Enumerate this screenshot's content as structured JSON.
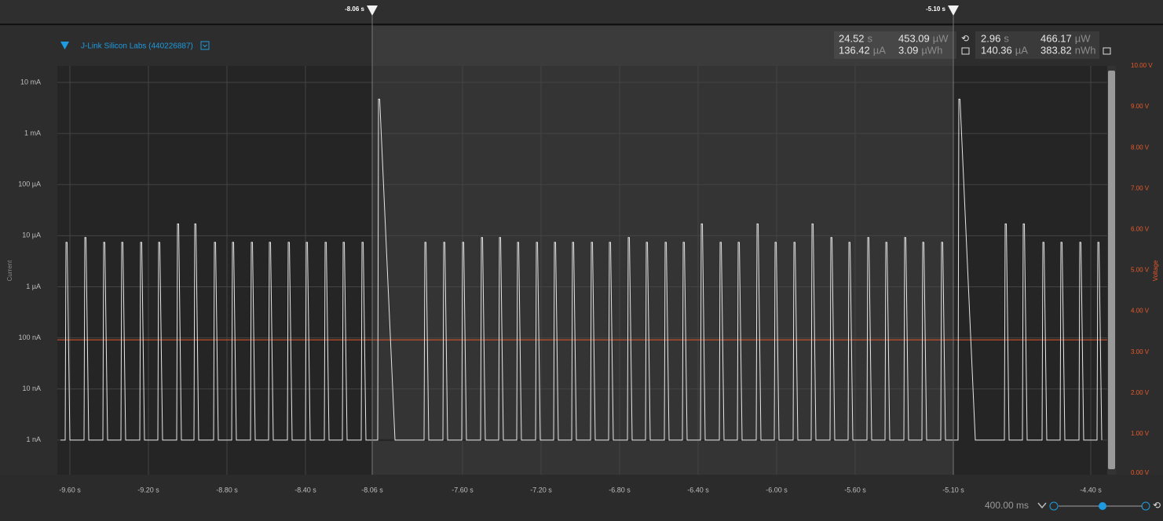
{
  "header": {
    "device": "J-Link Silicon Labs (440226887)"
  },
  "window_stats": [
    {
      "value": "24.52",
      "unit": "s"
    },
    {
      "value": "453.09",
      "unit": "µW"
    },
    {
      "value": "136.42",
      "unit": "µA"
    },
    {
      "value": "3.09",
      "unit": "µWh"
    }
  ],
  "selection_stats": [
    {
      "value": "2.96",
      "unit": "s"
    },
    {
      "value": "466.17",
      "unit": "µW"
    },
    {
      "value": "140.36",
      "unit": "µA"
    },
    {
      "value": "383.82",
      "unit": "nWh"
    }
  ],
  "zoom": "400.00 ms",
  "chart_data": {
    "type": "line",
    "ylabel": "Current",
    "y2label": "Voltage",
    "log_y": true,
    "grid": true,
    "ylim": [
      2.1e-10,
      0.021
    ],
    "yticks": [
      {
        "value": 0.01,
        "label": "10 mA"
      },
      {
        "value": 0.001,
        "label": "1 mA"
      },
      {
        "value": 0.0001,
        "label": "100 µA"
      },
      {
        "value": 1e-05,
        "label": "10 µA"
      },
      {
        "value": 1e-06,
        "label": "1 µA"
      },
      {
        "value": 1e-07,
        "label": "100 nA"
      },
      {
        "value": 1e-08,
        "label": "10 nA"
      },
      {
        "value": 1e-09,
        "label": "1 nA"
      }
    ],
    "y2lim": [
      0,
      10
    ],
    "y2ticks": [
      {
        "value": 10,
        "label": "10.00 V"
      },
      {
        "value": 9,
        "label": "9.00 V"
      },
      {
        "value": 8,
        "label": "8.00 V"
      },
      {
        "value": 7,
        "label": "7.00 V"
      },
      {
        "value": 6,
        "label": "6.00 V"
      },
      {
        "value": 5,
        "label": "5.00 V"
      },
      {
        "value": 4,
        "label": "4.00 V"
      },
      {
        "value": 3,
        "label": "3.00 V"
      },
      {
        "value": 2,
        "label": "2.00 V"
      },
      {
        "value": 1,
        "label": "1.00 V"
      },
      {
        "value": 0,
        "label": "0.00 V"
      }
    ],
    "xlim": [
      -9.664,
      -4.316
    ],
    "xticks": [
      {
        "value": -9.6,
        "label": "-9.60 s"
      },
      {
        "value": -9.2,
        "label": "-9.20 s"
      },
      {
        "value": -8.8,
        "label": "-8.80 s"
      },
      {
        "value": -8.4,
        "label": "-8.40 s"
      },
      {
        "value": -8.06,
        "label": "-8.06 s"
      },
      {
        "value": -7.6,
        "label": "-7.60 s"
      },
      {
        "value": -7.2,
        "label": "-7.20 s"
      },
      {
        "value": -6.8,
        "label": "-6.80 s"
      },
      {
        "value": -6.4,
        "label": "-6.40 s"
      },
      {
        "value": -6.0,
        "label": "-6.00 s"
      },
      {
        "value": -5.6,
        "label": "-5.60 s"
      },
      {
        "value": -5.1,
        "label": "-5.10 s"
      },
      {
        "value": -4.4,
        "label": "-4.40 s"
      }
    ],
    "markers": [
      {
        "value": -8.06,
        "label": "-8.06 s"
      },
      {
        "value": -5.1,
        "label": "-5.10 s"
      }
    ],
    "voltage": 3.3,
    "voltage_color": "#e8592a",
    "trace_color": "#e6e6e6",
    "baseline": 1e-09,
    "pulses": [
      {
        "t": -9.624,
        "peak": 7.4e-06,
        "duration": 0.024
      },
      {
        "t": -9.528,
        "peak": 9.2e-06,
        "duration": 0.024
      },
      {
        "t": -9.432,
        "peak": 7.4e-06,
        "duration": 0.024
      },
      {
        "t": -9.34,
        "peak": 7.4e-06,
        "duration": 0.024
      },
      {
        "t": -9.244,
        "peak": 7.4e-06,
        "duration": 0.024
      },
      {
        "t": -9.152,
        "peak": 7.4e-06,
        "duration": 0.024
      },
      {
        "t": -9.056,
        "peak": 1.7e-05,
        "duration": 0.024
      },
      {
        "t": -8.968,
        "peak": 1.7e-05,
        "duration": 0.024
      },
      {
        "t": -8.868,
        "peak": 7.4e-06,
        "duration": 0.024
      },
      {
        "t": -8.776,
        "peak": 7.4e-06,
        "duration": 0.024
      },
      {
        "t": -8.68,
        "peak": 7.4e-06,
        "duration": 0.024
      },
      {
        "t": -8.588,
        "peak": 7.4e-06,
        "duration": 0.024
      },
      {
        "t": -8.492,
        "peak": 7.4e-06,
        "duration": 0.024
      },
      {
        "t": -8.4,
        "peak": 7.4e-06,
        "duration": 0.024
      },
      {
        "t": -8.304,
        "peak": 7.4e-06,
        "duration": 0.024
      },
      {
        "t": -8.212,
        "peak": 7.4e-06,
        "duration": 0.024
      },
      {
        "t": -8.116,
        "peak": 7.4e-06,
        "duration": 0.024
      },
      {
        "t": -8.032,
        "peak": 0.0047,
        "duration": 0.088
      },
      {
        "t": -7.796,
        "peak": 7.4e-06,
        "duration": 0.024
      },
      {
        "t": -7.7,
        "peak": 7.4e-06,
        "duration": 0.024
      },
      {
        "t": -7.604,
        "peak": 7.4e-06,
        "duration": 0.024
      },
      {
        "t": -7.508,
        "peak": 9.2e-06,
        "duration": 0.024
      },
      {
        "t": -7.416,
        "peak": 9.2e-06,
        "duration": 0.024
      },
      {
        "t": -7.324,
        "peak": 7.4e-06,
        "duration": 0.024
      },
      {
        "t": -7.228,
        "peak": 7.4e-06,
        "duration": 0.024
      },
      {
        "t": -7.136,
        "peak": 7.4e-06,
        "duration": 0.024
      },
      {
        "t": -7.044,
        "peak": 7.4e-06,
        "duration": 0.024
      },
      {
        "t": -6.948,
        "peak": 7.4e-06,
        "duration": 0.024
      },
      {
        "t": -6.856,
        "peak": 7.4e-06,
        "duration": 0.024
      },
      {
        "t": -6.76,
        "peak": 9.2e-06,
        "duration": 0.024
      },
      {
        "t": -6.668,
        "peak": 7.4e-06,
        "duration": 0.024
      },
      {
        "t": -6.572,
        "peak": 7.4e-06,
        "duration": 0.024
      },
      {
        "t": -6.48,
        "peak": 7.4e-06,
        "duration": 0.024
      },
      {
        "t": -6.388,
        "peak": 1.7e-05,
        "duration": 0.024
      },
      {
        "t": -6.292,
        "peak": 7.4e-06,
        "duration": 0.024
      },
      {
        "t": -6.2,
        "peak": 7.4e-06,
        "duration": 0.024
      },
      {
        "t": -6.104,
        "peak": 1.7e-05,
        "duration": 0.024
      },
      {
        "t": -6.012,
        "peak": 7.4e-06,
        "duration": 0.024
      },
      {
        "t": -5.916,
        "peak": 7.4e-06,
        "duration": 0.024
      },
      {
        "t": -5.824,
        "peak": 1.7e-05,
        "duration": 0.024
      },
      {
        "t": -5.728,
        "peak": 9.2e-06,
        "duration": 0.024
      },
      {
        "t": -5.636,
        "peak": 7.4e-06,
        "duration": 0.024
      },
      {
        "t": -5.54,
        "peak": 9.2e-06,
        "duration": 0.024
      },
      {
        "t": -5.448,
        "peak": 7.4e-06,
        "duration": 0.024
      },
      {
        "t": -5.352,
        "peak": 9.2e-06,
        "duration": 0.024
      },
      {
        "t": -5.26,
        "peak": 7.4e-06,
        "duration": 0.024
      },
      {
        "t": -5.164,
        "peak": 7.4e-06,
        "duration": 0.024
      },
      {
        "t": -5.076,
        "peak": 0.0047,
        "duration": 0.088
      },
      {
        "t": -4.84,
        "peak": 1.7e-05,
        "duration": 0.024
      },
      {
        "t": -4.748,
        "peak": 1.7e-05,
        "duration": 0.024
      },
      {
        "t": -4.648,
        "peak": 7.4e-06,
        "duration": 0.024
      },
      {
        "t": -4.556,
        "peak": 7.4e-06,
        "duration": 0.024
      },
      {
        "t": -4.46,
        "peak": 7.4e-06,
        "duration": 0.024
      },
      {
        "t": -4.368,
        "peak": 7.4e-06,
        "duration": 0.024
      }
    ]
  }
}
